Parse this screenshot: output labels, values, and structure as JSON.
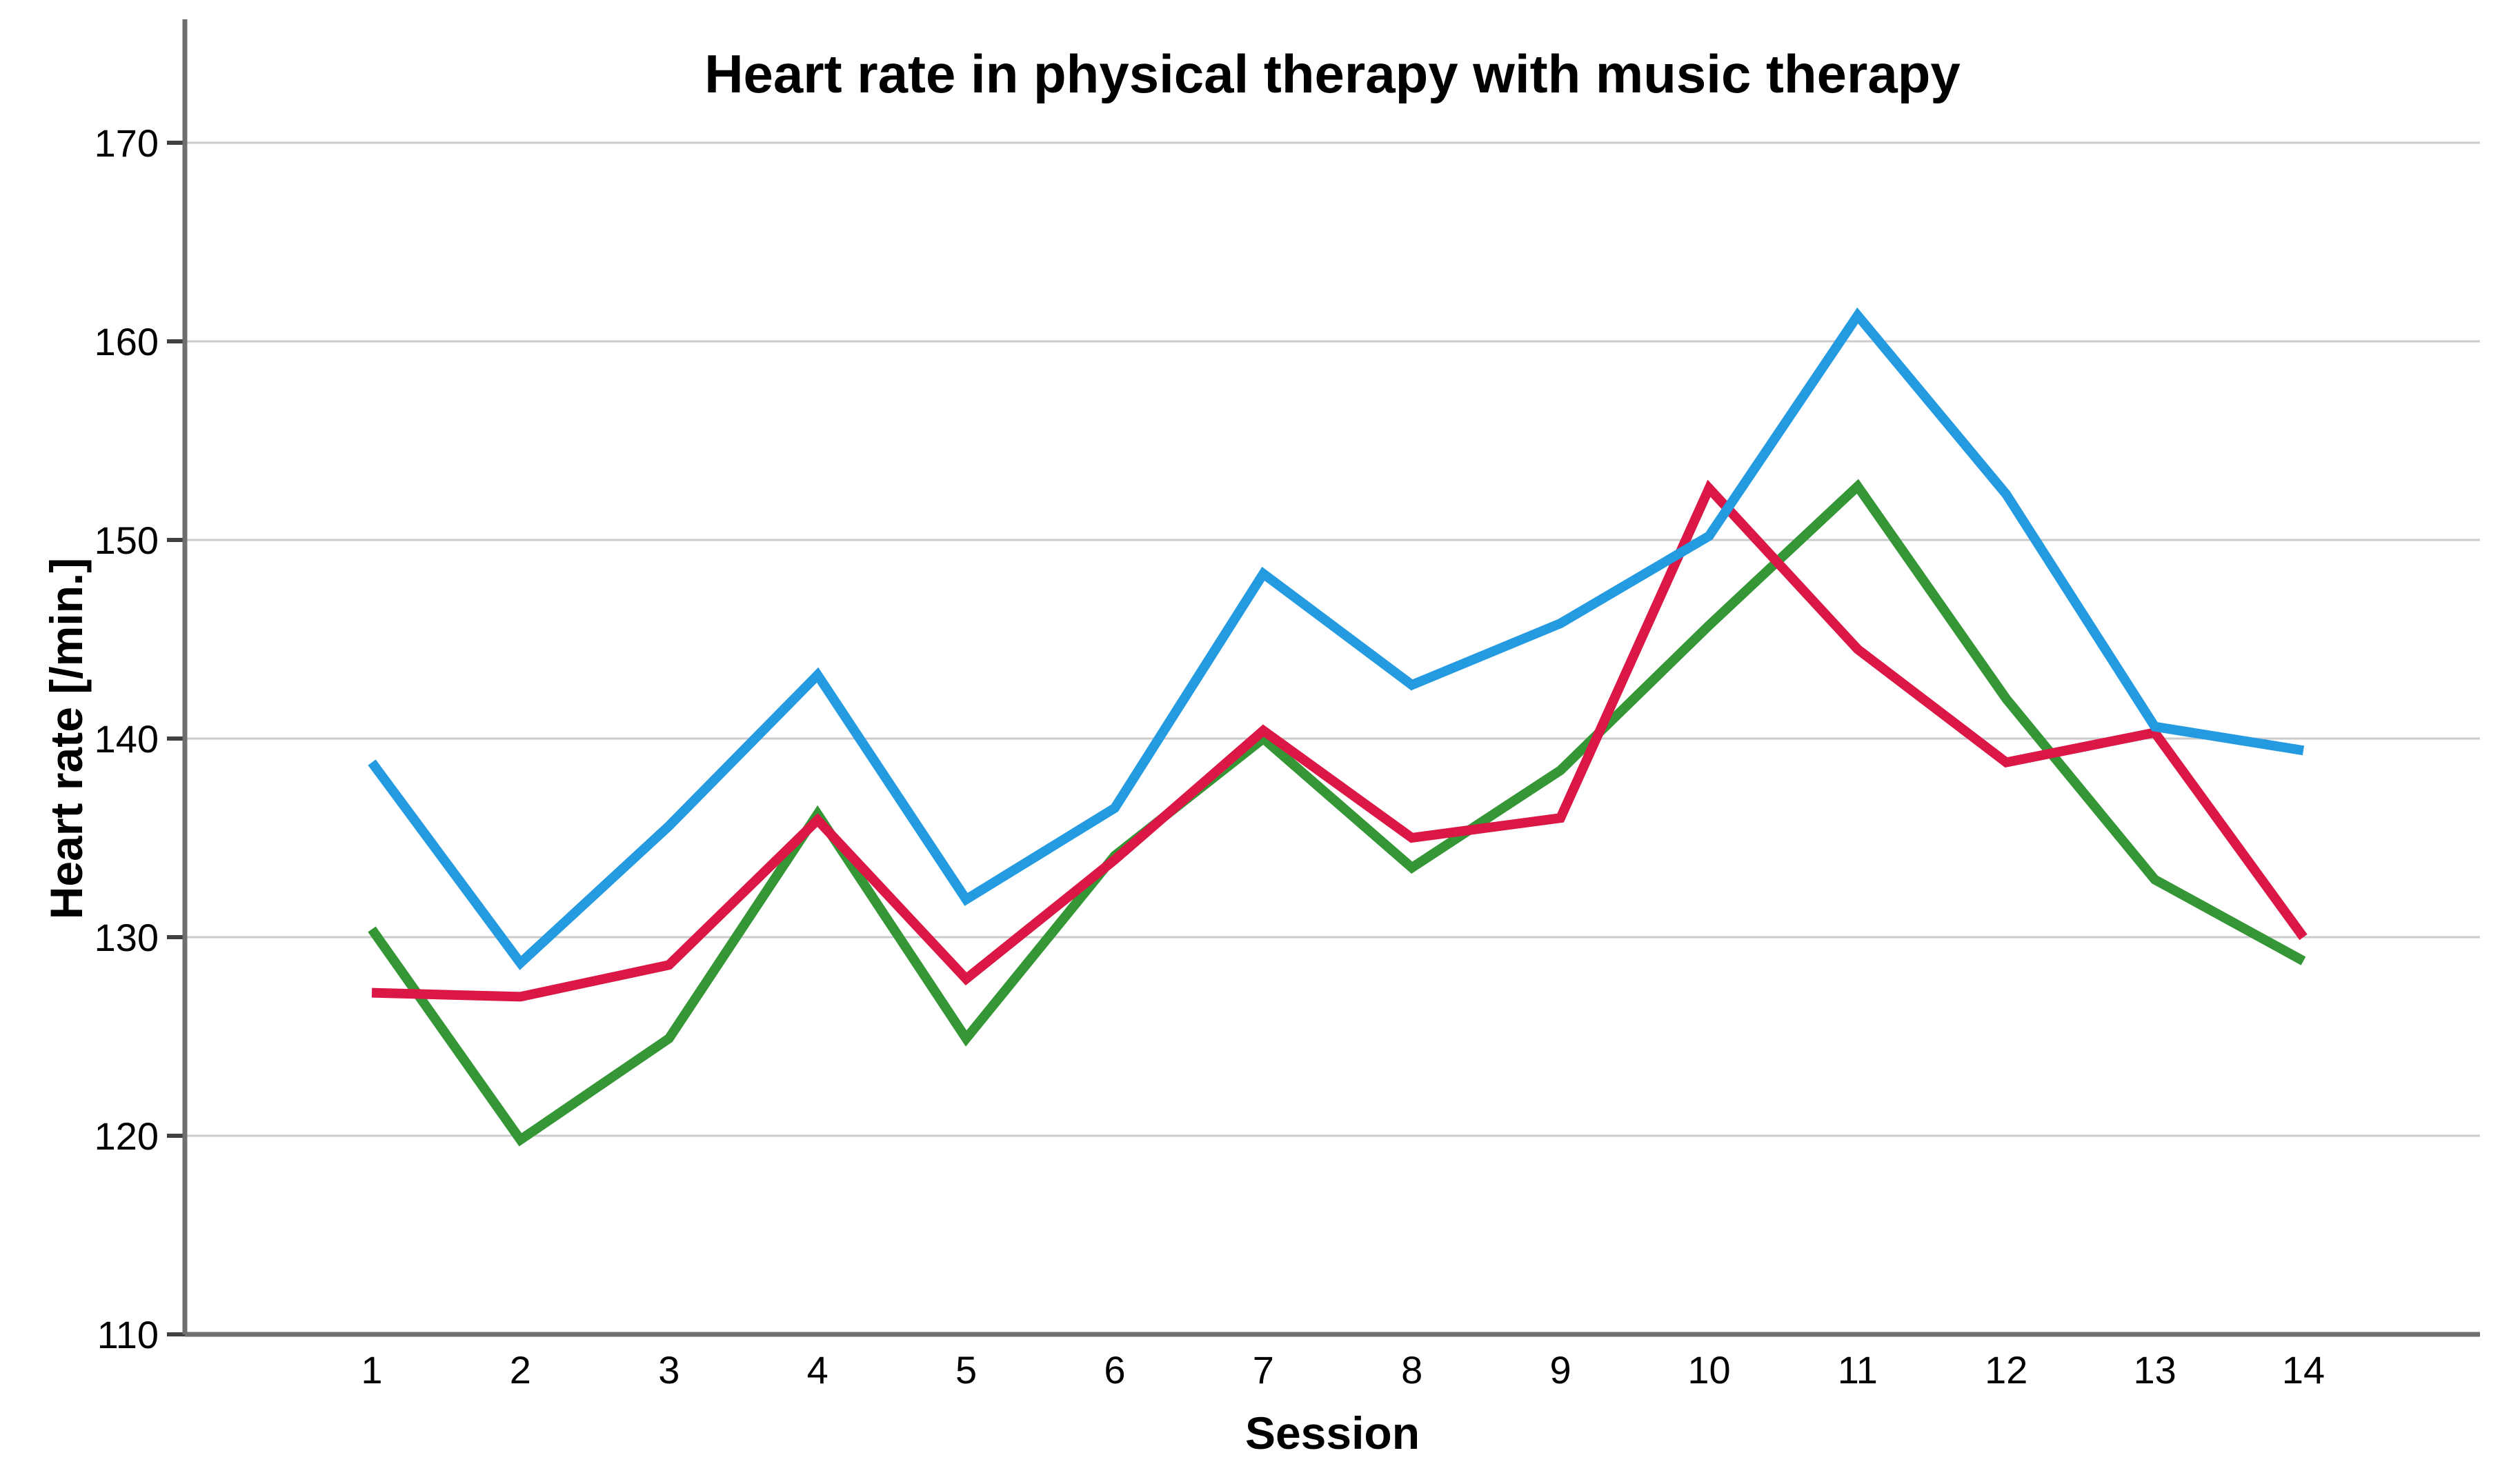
{
  "chart": {
    "title": "Heart rate in physical therapy with music therapy",
    "xlabel": "Session",
    "ylabel": "Heart rate [/min.]"
  },
  "chart_data": {
    "type": "line",
    "title": "Heart rate in physical therapy with music therapy",
    "xlabel": "Session",
    "ylabel": "Heart rate [/min.]",
    "x": [
      1,
      2,
      3,
      4,
      5,
      6,
      7,
      8,
      9,
      10,
      11,
      12,
      13,
      14
    ],
    "x_tick_labels": [
      "1",
      "2",
      "3",
      "4",
      "5",
      "6",
      "7",
      "8",
      "9",
      "10",
      "11",
      "12",
      "13",
      "14"
    ],
    "y_tick_labels": [
      "110",
      "120",
      "130",
      "140",
      "150",
      "160",
      "170"
    ],
    "ylim": [
      110,
      170
    ],
    "ytick_step": 10,
    "grid": true,
    "legend_position": "none",
    "series": [
      {
        "name": "green-line",
        "color": "#359636",
        "values": [
          130.4,
          119.8,
          124.9,
          136.2,
          124.9,
          134.1,
          140.0,
          133.5,
          138.4,
          145.7,
          152.7,
          142.0,
          132.9,
          128.8
        ]
      },
      {
        "name": "red-line",
        "color": "#DB1746",
        "values": [
          127.2,
          127.0,
          128.6,
          135.9,
          127.9,
          133.9,
          140.4,
          135.0,
          136.0,
          152.6,
          144.5,
          138.8,
          140.3,
          130.0
        ]
      },
      {
        "name": "blue-line",
        "color": "#249BE0",
        "values": [
          138.8,
          128.7,
          135.6,
          143.2,
          131.9,
          136.5,
          148.3,
          142.7,
          145.8,
          150.2,
          161.3,
          152.3,
          140.6,
          139.4
        ]
      }
    ]
  },
  "style_colors": {
    "gridline": "#CBCBCB",
    "axis_line": "#6F6F6F",
    "tick_mark": "#404040",
    "text": "#000000",
    "background": "#FFFFFF"
  }
}
